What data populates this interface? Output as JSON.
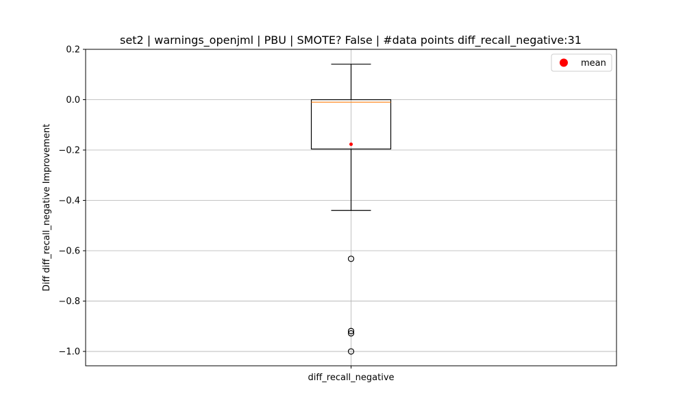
{
  "chart_data": {
    "type": "box",
    "title": "set2 | warnings_openjml | PBU | SMOTE? False | #data points diff_recall_negative:31",
    "ylabel": "Diff diff_recall_negative Improvement",
    "xlabel": "",
    "categories": [
      "diff_recall_negative"
    ],
    "ylim": [
      -1.057,
      0.2
    ],
    "yticks": [
      0.2,
      0.0,
      -0.2,
      -0.4,
      -0.6,
      -0.8,
      -1.0
    ],
    "ytick_labels": [
      "0.2",
      "0.0",
      "−0.2",
      "−0.4",
      "−0.6",
      "−0.8",
      "−1.0"
    ],
    "grid": true,
    "legend": {
      "position": "top-right",
      "entries": [
        {
          "label": "mean",
          "color": "#ff0000"
        }
      ]
    },
    "series": [
      {
        "whisker_high": 0.141,
        "q3": 0.0,
        "median": -0.01,
        "q1": -0.196,
        "whisker_low": -0.44,
        "mean": -0.177,
        "outliers": [
          -0.632,
          -0.919,
          -0.928,
          -1.0
        ]
      }
    ],
    "colors": {
      "median": "#ff7f0e",
      "mean": "#ff0000",
      "grid": "#b0b0b0",
      "box": "#000000"
    }
  }
}
